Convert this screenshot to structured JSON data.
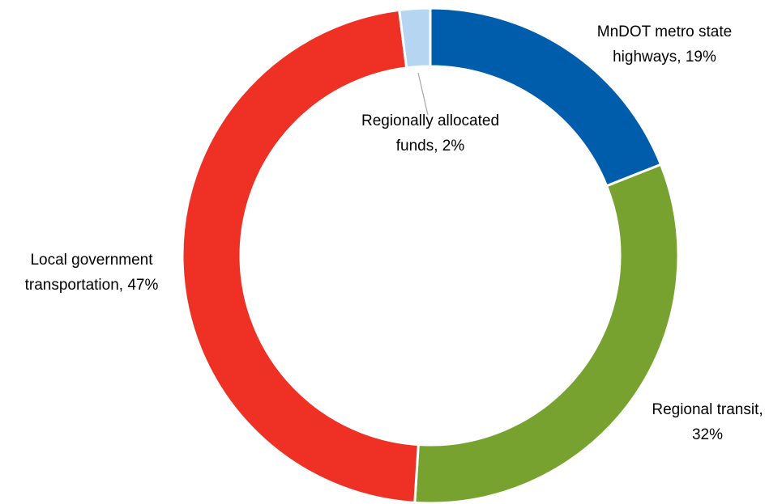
{
  "chart_data": {
    "type": "donut",
    "labels": [
      [
        "MnDOT metro state",
        "highways, 19%"
      ],
      [
        "Regional transit,",
        "32%"
      ],
      [
        "Local government",
        "transportation, 47%"
      ],
      [
        "Regionally allocated",
        "funds, 2%"
      ]
    ],
    "values": [
      19,
      32,
      47,
      2
    ],
    "colors": [
      "#005dab",
      "#78a22f",
      "#ee3124",
      "#b5d5f0"
    ]
  }
}
